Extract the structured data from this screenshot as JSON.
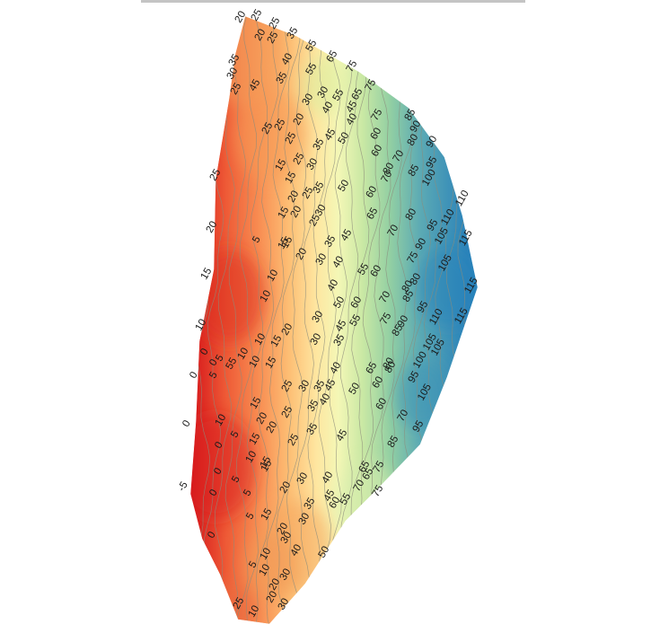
{
  "map": {
    "type": "contour-heatmap",
    "contour_interval": 5,
    "color_scale": {
      "low_value": -5,
      "high_value": 115,
      "colors": [
        "#d7191c",
        "#ee5a36",
        "#f88d52",
        "#fdbe74",
        "#fee6a0",
        "#f4f7b6",
        "#c9e8a4",
        "#92cfa3",
        "#5caab4",
        "#2b83ba"
      ]
    },
    "line_color": "#8c8c7c",
    "contour_labels": [
      {
        "text": "20"
      },
      {
        "text": "25"
      },
      {
        "text": "25"
      },
      {
        "text": "20"
      },
      {
        "text": "25"
      },
      {
        "text": "35"
      },
      {
        "text": "35"
      },
      {
        "text": "30"
      },
      {
        "text": "25"
      },
      {
        "text": "45"
      },
      {
        "text": "55"
      },
      {
        "text": "65"
      },
      {
        "text": "40"
      },
      {
        "text": "55"
      },
      {
        "text": "75"
      },
      {
        "text": "75"
      },
      {
        "text": "35"
      },
      {
        "text": "30"
      },
      {
        "text": "30"
      },
      {
        "text": "20"
      },
      {
        "text": "25"
      },
      {
        "text": "25"
      },
      {
        "text": "25"
      },
      {
        "text": "55"
      },
      {
        "text": "40"
      },
      {
        "text": "45"
      },
      {
        "text": "65"
      },
      {
        "text": "75"
      },
      {
        "text": "45"
      },
      {
        "text": "85"
      },
      {
        "text": "90"
      },
      {
        "text": "90"
      },
      {
        "text": "35"
      },
      {
        "text": "40"
      },
      {
        "text": "60"
      },
      {
        "text": "80"
      },
      {
        "text": "15"
      },
      {
        "text": "25"
      },
      {
        "text": "30"
      },
      {
        "text": "50"
      },
      {
        "text": "60"
      },
      {
        "text": "70"
      },
      {
        "text": "95"
      },
      {
        "text": "25"
      },
      {
        "text": "15"
      },
      {
        "text": "20"
      },
      {
        "text": "25"
      },
      {
        "text": "80"
      },
      {
        "text": "85"
      },
      {
        "text": "100"
      },
      {
        "text": "20"
      },
      {
        "text": "15"
      },
      {
        "text": "35"
      },
      {
        "text": "50"
      },
      {
        "text": "60"
      },
      {
        "text": "70"
      },
      {
        "text": "110"
      },
      {
        "text": "20"
      },
      {
        "text": "15"
      },
      {
        "text": "2530"
      },
      {
        "text": "65"
      },
      {
        "text": "80"
      },
      {
        "text": "95"
      },
      {
        "text": "110"
      },
      {
        "text": "5"
      },
      {
        "text": "15"
      },
      {
        "text": "35"
      },
      {
        "text": "45"
      },
      {
        "text": "70"
      },
      {
        "text": "90"
      },
      {
        "text": "105"
      },
      {
        "text": "115"
      },
      {
        "text": "15"
      },
      {
        "text": "10"
      },
      {
        "text": "20"
      },
      {
        "text": "30"
      },
      {
        "text": "40"
      },
      {
        "text": "55"
      },
      {
        "text": "60"
      },
      {
        "text": "75"
      },
      {
        "text": "80"
      },
      {
        "text": "105"
      },
      {
        "text": "10"
      },
      {
        "text": "40"
      },
      {
        "text": "50"
      },
      {
        "text": "60"
      },
      {
        "text": "70"
      },
      {
        "text": "80"
      },
      {
        "text": "85"
      },
      {
        "text": "95"
      },
      {
        "text": "115"
      },
      {
        "text": "10"
      },
      {
        "text": "30"
      },
      {
        "text": "55"
      },
      {
        "text": "75"
      },
      {
        "text": "90"
      },
      {
        "text": "110"
      },
      {
        "text": "115"
      },
      {
        "text": "0"
      },
      {
        "text": "0"
      },
      {
        "text": "55"
      },
      {
        "text": "10"
      },
      {
        "text": "15"
      },
      {
        "text": "20"
      },
      {
        "text": "30"
      },
      {
        "text": "45"
      },
      {
        "text": "85"
      },
      {
        "text": "105"
      },
      {
        "text": "10"
      },
      {
        "text": "15"
      },
      {
        "text": "35"
      },
      {
        "text": "40"
      },
      {
        "text": "65"
      },
      {
        "text": "80"
      },
      {
        "text": "100"
      },
      {
        "text": "5"
      },
      {
        "text": "10"
      },
      {
        "text": "25"
      },
      {
        "text": "30"
      },
      {
        "text": "35"
      },
      {
        "text": "50"
      },
      {
        "text": "60"
      },
      {
        "text": "95"
      },
      {
        "text": "105"
      },
      {
        "text": "0"
      },
      {
        "text": "5"
      },
      {
        "text": "15"
      },
      {
        "text": "35"
      },
      {
        "text": "40"
      },
      {
        "text": "45"
      },
      {
        "text": "60"
      },
      {
        "text": "80"
      },
      {
        "text": "105"
      },
      {
        "text": "0"
      },
      {
        "text": "10"
      },
      {
        "text": "20"
      },
      {
        "text": "25"
      },
      {
        "text": "35"
      },
      {
        "text": "70"
      },
      {
        "text": "95"
      },
      {
        "text": "0"
      },
      {
        "text": "5"
      },
      {
        "text": "15"
      },
      {
        "text": "20"
      },
      {
        "text": "25"
      },
      {
        "text": "45"
      },
      {
        "text": "85"
      },
      {
        "text": "0"
      },
      {
        "text": "10"
      },
      {
        "text": "15"
      },
      {
        "text": "40"
      },
      {
        "text": "65"
      },
      {
        "text": "75"
      },
      {
        "text": "-5"
      },
      {
        "text": "5"
      },
      {
        "text": "15"
      },
      {
        "text": "30"
      },
      {
        "text": "45"
      },
      {
        "text": "60"
      },
      {
        "text": "70"
      },
      {
        "text": "65"
      },
      {
        "text": "75"
      },
      {
        "text": "0"
      },
      {
        "text": "5"
      },
      {
        "text": "20"
      },
      {
        "text": "35"
      },
      {
        "text": "55"
      },
      {
        "text": "0"
      },
      {
        "text": "15"
      },
      {
        "text": "20"
      },
      {
        "text": "30"
      },
      {
        "text": "5"
      },
      {
        "text": "10"
      },
      {
        "text": "30"
      },
      {
        "text": "40"
      },
      {
        "text": "50"
      },
      {
        "text": "5"
      },
      {
        "text": "10"
      },
      {
        "text": "30"
      },
      {
        "text": "20"
      },
      {
        "text": "25"
      },
      {
        "text": "10"
      },
      {
        "text": "20"
      },
      {
        "text": "30"
      }
    ]
  }
}
